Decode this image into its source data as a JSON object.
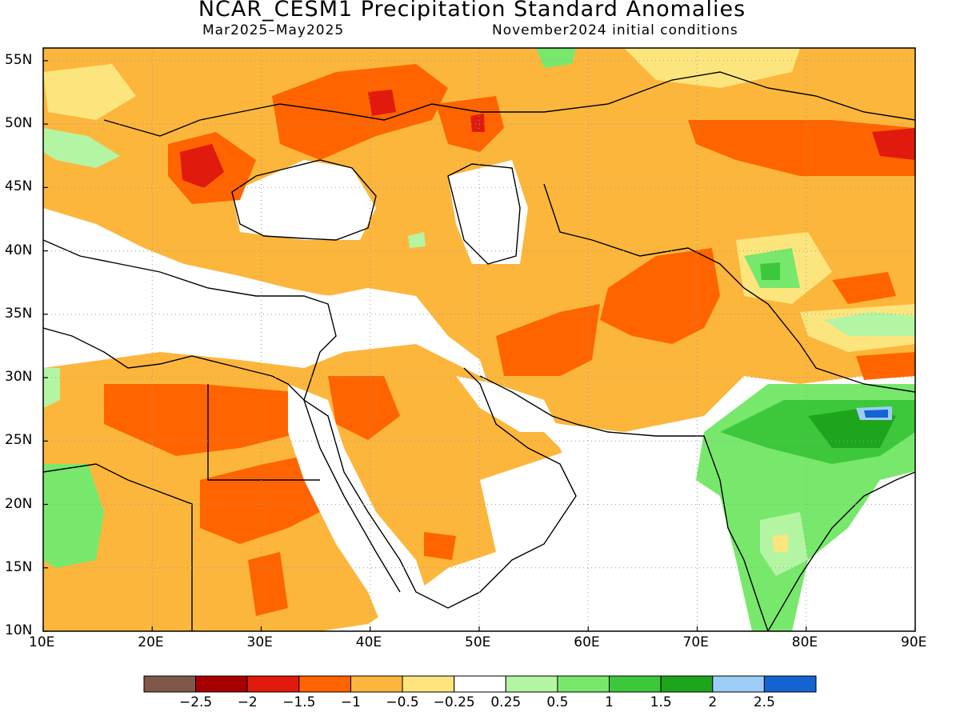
{
  "header": {
    "title": "NCAR_CESM1 Precipitation Standard Anomalies",
    "period": "Mar2025–May2025",
    "init": "November2024 initial conditions"
  },
  "map": {
    "projection": "equirectangular",
    "lon_range": [
      10,
      90
    ],
    "lat_range": [
      10,
      56
    ],
    "gridlines": "dotted",
    "lon_ticks": [
      "10E",
      "20E",
      "30E",
      "40E",
      "50E",
      "60E",
      "70E",
      "80E",
      "90E"
    ],
    "lat_ticks": [
      "55N",
      "50N",
      "45N",
      "40N",
      "35N",
      "30N",
      "25N",
      "20N",
      "15N",
      "10N"
    ]
  },
  "legend": {
    "colors": [
      "#7f5849",
      "#a70000",
      "#e01a0c",
      "#ff6400",
      "#fcb63c",
      "#fde57e",
      "#ffffff",
      "#b4f5a4",
      "#78e86c",
      "#3dc83c",
      "#1ea51e",
      "#9ccdf7",
      "#1463d2"
    ],
    "labels": [
      "−2.5",
      "−2",
      "−1.5",
      "−1",
      "−0.5",
      "−0.25",
      "0.25",
      "0.5",
      "1",
      "1.5",
      "2",
      "2.5"
    ]
  }
}
